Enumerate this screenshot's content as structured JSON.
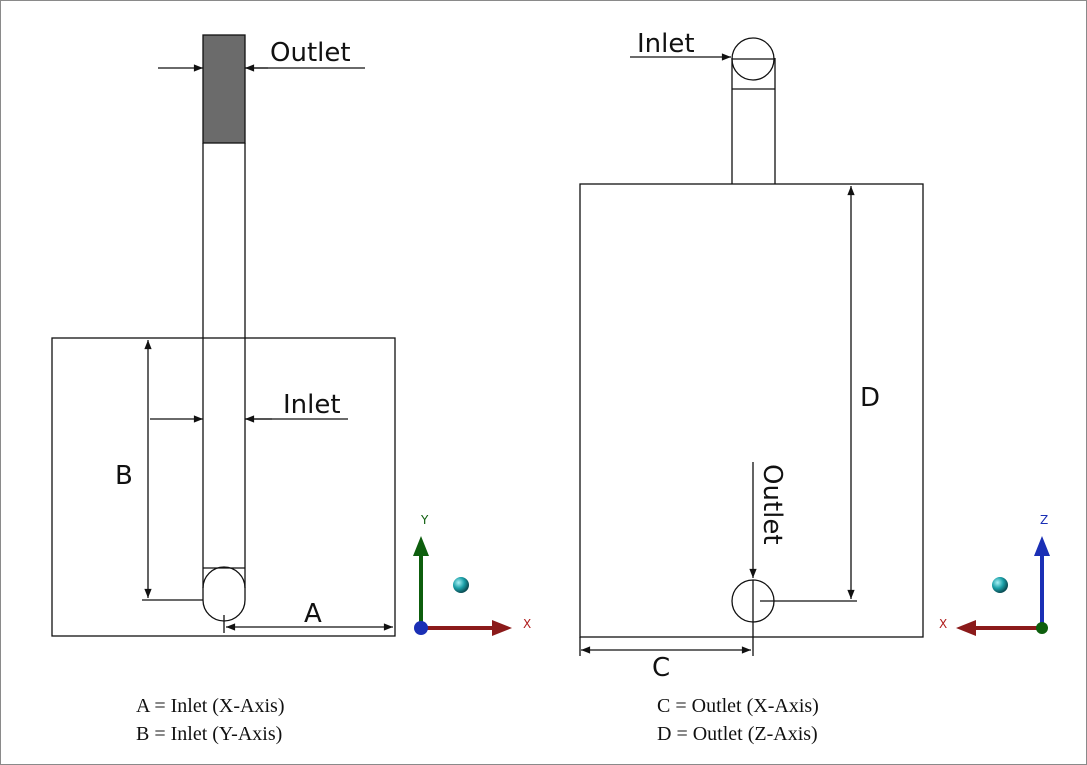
{
  "left_view": {
    "outlet_label": "Outlet",
    "inlet_label": "Inlet",
    "dim_a_label": "A",
    "dim_b_label": "B",
    "triad": {
      "vertical_axis": "Y",
      "horizontal_axis": "X"
    }
  },
  "right_view": {
    "inlet_label": "Inlet",
    "outlet_label": "Outlet",
    "dim_c_label": "C",
    "dim_d_label": "D",
    "triad": {
      "vertical_axis": "Z",
      "horizontal_axis": "X"
    }
  },
  "captions": {
    "left": [
      "A = Inlet (X-Axis)",
      "B = Inlet (Y-Axis)"
    ],
    "right": [
      "C = Outlet (X-Axis)",
      "D = Outlet (Z-Axis)"
    ]
  },
  "colors": {
    "outlet_fill": "#6b6b6b",
    "x_axis": "#8b1a1a",
    "y_axis": "#0d5e0d",
    "z_axis": "#1a2fb5",
    "sphere": "#1aa0a8"
  }
}
